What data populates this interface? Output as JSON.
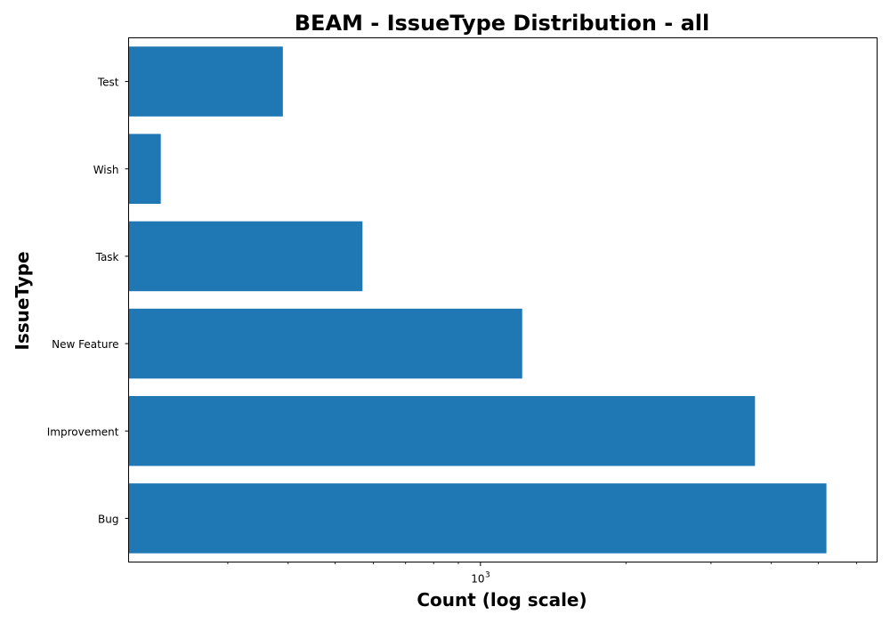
{
  "chart_data": {
    "type": "bar",
    "orientation": "horizontal",
    "title": "BEAM - IssueType Distribution - all",
    "xlabel": "Count (log scale)",
    "ylabel": "IssueType",
    "x_scale": "log",
    "xlim": [
      187,
      6620
    ],
    "categories": [
      "Bug",
      "Improvement",
      "New Feature",
      "Task",
      "Wish",
      "Test"
    ],
    "values": [
      5200,
      3700,
      1220,
      570,
      218,
      390
    ],
    "x_ticks": [
      {
        "value": 1000,
        "base": "10",
        "exponent": "3"
      }
    ],
    "x_minor_ticks": [
      300,
      400,
      500,
      600,
      700,
      800,
      900,
      2000,
      3000,
      4000,
      5000,
      6000
    ],
    "bar_color": "#1f77b4",
    "grid": false,
    "legend": "none"
  }
}
